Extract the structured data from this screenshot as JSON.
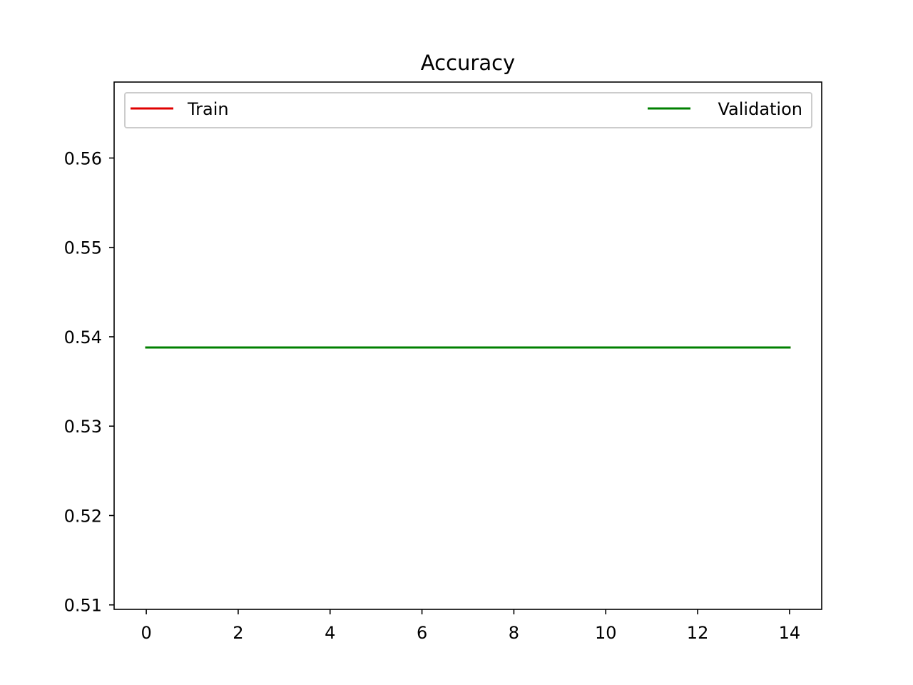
{
  "chart_data": {
    "type": "line",
    "title": "Accuracy",
    "xlabel": "",
    "ylabel": "",
    "xlim": [
      -0.7,
      14.7
    ],
    "ylim": [
      0.5095,
      0.5685
    ],
    "x_ticks": [
      0,
      2,
      4,
      6,
      8,
      10,
      12,
      14
    ],
    "x_tick_labels": [
      "0",
      "2",
      "4",
      "6",
      "8",
      "10",
      "12",
      "14"
    ],
    "y_ticks": [
      0.51,
      0.52,
      0.53,
      0.54,
      0.55,
      0.56
    ],
    "y_tick_labels": [
      "0.51",
      "0.52",
      "0.53",
      "0.54",
      "0.55",
      "0.56"
    ],
    "grid": false,
    "legend": {
      "placement": "top",
      "entries": [
        "Train",
        "Validation"
      ]
    },
    "series": [
      {
        "name": "Train",
        "color": "#e00000",
        "x": [
          0,
          1,
          2,
          3,
          4,
          5,
          6,
          7,
          8,
          9,
          10,
          11,
          12,
          13,
          14
        ],
        "values": [
          0.5388,
          0.5388,
          0.5388,
          0.5388,
          0.5388,
          0.5388,
          0.5388,
          0.5388,
          0.5388,
          0.5388,
          0.5388,
          0.5388,
          0.5388,
          0.5388,
          0.5388
        ]
      },
      {
        "name": "Validation",
        "color": "#008000",
        "x": [
          0,
          1,
          2,
          3,
          4,
          5,
          6,
          7,
          8,
          9,
          10,
          11,
          12,
          13,
          14
        ],
        "values": [
          0.5388,
          0.5388,
          0.5388,
          0.5388,
          0.5388,
          0.5388,
          0.5388,
          0.5388,
          0.5388,
          0.5388,
          0.5388,
          0.5388,
          0.5388,
          0.5388,
          0.5388
        ]
      }
    ]
  }
}
